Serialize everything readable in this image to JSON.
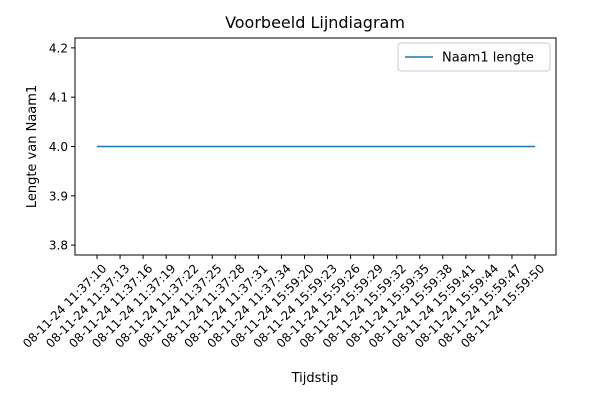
{
  "chart_data": {
    "type": "line",
    "title": "Voorbeeld Lijndiagram",
    "xlabel": "Tijdstip",
    "ylabel": "Lengte van Naam1",
    "categories": [
      "08-11-24 11:37:10",
      "08-11-24 11:37:13",
      "08-11-24 11:37:16",
      "08-11-24 11:37:19",
      "08-11-24 11:37:22",
      "08-11-24 11:37:25",
      "08-11-24 11:37:28",
      "08-11-24 11:37:31",
      "08-11-24 11:37:34",
      "08-11-24 15:59:20",
      "08-11-24 15:59:23",
      "08-11-24 15:59:26",
      "08-11-24 15:59:29",
      "08-11-24 15:59:32",
      "08-11-24 15:59:35",
      "08-11-24 15:59:38",
      "08-11-24 15:59:41",
      "08-11-24 15:59:44",
      "08-11-24 15:59:47",
      "08-11-24 15:59:50"
    ],
    "series": [
      {
        "name": "Naam1 lengte",
        "color": "#1f77b4",
        "values": [
          4.0,
          4.0,
          4.0,
          4.0,
          4.0,
          4.0,
          4.0,
          4.0,
          4.0,
          4.0,
          4.0,
          4.0,
          4.0,
          4.0,
          4.0,
          4.0,
          4.0,
          4.0,
          4.0,
          4.0
        ]
      }
    ],
    "yticks": [
      "3.8",
      "3.9",
      "4.0",
      "4.1",
      "4.2"
    ],
    "ylim": [
      3.78,
      4.22
    ],
    "grid": false,
    "legend_position": "top-right"
  }
}
